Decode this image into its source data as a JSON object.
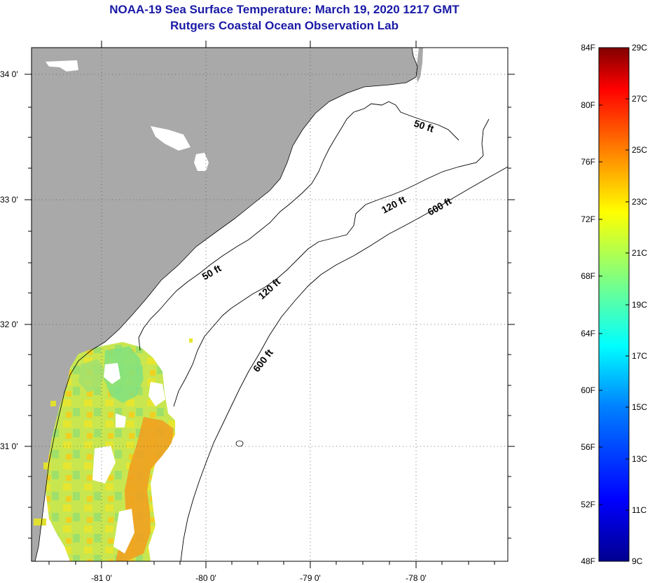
{
  "title": "NOAA-19 Sea Surface Temperature:  March 19, 2020 1217 GMT",
  "subtitle": "Rutgers Coastal Ocean Observation Lab",
  "map": {
    "lat_labels": [
      "34 0'",
      "33 0'",
      "32 0'",
      "31 0'"
    ],
    "lon_labels": [
      "-81 0'",
      "-80 0'",
      "-79 0'",
      "-78 0'"
    ],
    "contours": [
      {
        "label": "50 ft"
      },
      {
        "label": "50 ft"
      },
      {
        "label": "120 ft"
      },
      {
        "label": "120 ft"
      },
      {
        "label": "600 ft"
      },
      {
        "label": "600 ft"
      }
    ],
    "colors": {
      "land": "#a9a9a9",
      "ocean_no_data": "#ffffff"
    }
  },
  "colorbar": {
    "fahrenheit_labels": [
      "84F",
      "80F",
      "76F",
      "72F",
      "68F",
      "64F",
      "60F",
      "56F",
      "52F",
      "48F"
    ],
    "celsius_labels": [
      "29C",
      "27C",
      "25C",
      "23C",
      "21C",
      "19C",
      "17C",
      "15C",
      "13C",
      "11C",
      "9C"
    ],
    "color_stops": [
      "#00008f",
      "#0000ff",
      "#0080ff",
      "#00ffff",
      "#80ff80",
      "#ffff00",
      "#ff8000",
      "#ff0000",
      "#800000"
    ]
  }
}
